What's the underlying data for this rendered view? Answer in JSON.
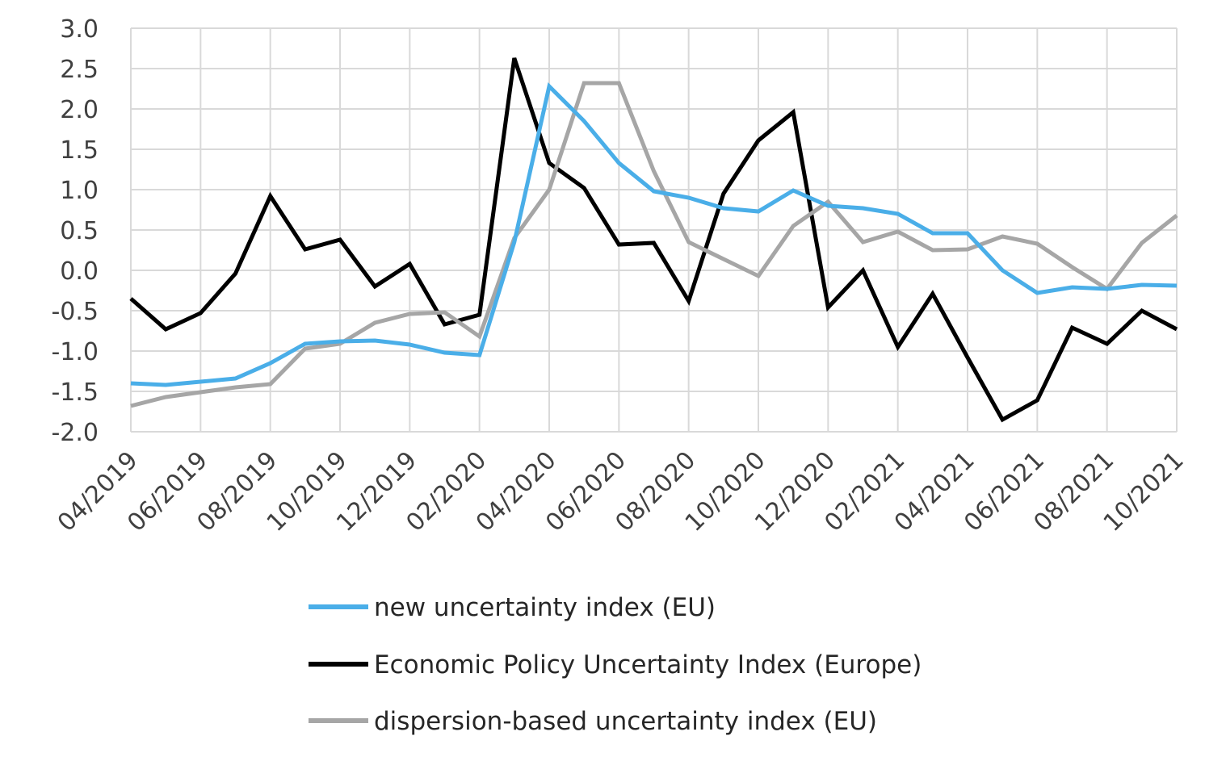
{
  "chart_data": {
    "type": "line",
    "title": "",
    "xlabel": "",
    "ylabel": "",
    "ylim": [
      -2.0,
      3.0
    ],
    "y_ticks": [
      "3.0",
      "2.5",
      "2.0",
      "1.5",
      "1.0",
      "0.5",
      "0.0",
      "-0.5",
      "-1.0",
      "-1.5",
      "-2.0"
    ],
    "x": [
      "04/2019",
      "05/2019",
      "06/2019",
      "07/2019",
      "08/2019",
      "09/2019",
      "10/2019",
      "11/2019",
      "12/2019",
      "01/2020",
      "02/2020",
      "03/2020",
      "04/2020",
      "05/2020",
      "06/2020",
      "07/2020",
      "08/2020",
      "09/2020",
      "10/2020",
      "11/2020",
      "12/2020",
      "01/2021",
      "02/2021",
      "03/2021",
      "04/2021",
      "05/2021",
      "06/2021",
      "07/2021",
      "08/2021",
      "09/2021",
      "10/2021"
    ],
    "x_tick_labels": [
      "04/2019",
      "06/2019",
      "08/2019",
      "10/2019",
      "12/2019",
      "02/2020",
      "04/2020",
      "06/2020",
      "08/2020",
      "10/2020",
      "12/2020",
      "02/2021",
      "04/2021",
      "06/2021",
      "08/2021",
      "10/2021"
    ],
    "grid": true,
    "legend_position": "bottom",
    "series": [
      {
        "name": "new uncertainty index (EU)",
        "color": "#4aaee8",
        "values": [
          -1.4,
          -1.42,
          -1.38,
          -1.34,
          -1.15,
          -0.91,
          -0.88,
          -0.87,
          -0.92,
          -1.02,
          -1.05,
          0.35,
          2.28,
          1.85,
          1.33,
          0.98,
          0.9,
          0.77,
          0.73,
          0.99,
          0.8,
          0.77,
          0.7,
          0.46,
          0.46,
          0.0,
          -0.28,
          -0.21,
          -0.23,
          -0.18,
          -0.19
        ]
      },
      {
        "name": "Economic Policy Uncertainty Index (Europe)",
        "color": "#000000",
        "values": [
          -0.35,
          -0.73,
          -0.53,
          -0.04,
          0.92,
          0.26,
          0.38,
          -0.2,
          0.08,
          -0.67,
          -0.55,
          2.63,
          1.33,
          1.02,
          0.32,
          0.34,
          -0.38,
          0.95,
          1.61,
          1.96,
          -0.46,
          0.0,
          -0.95,
          -0.29,
          -1.08,
          -1.85,
          -1.61,
          -0.71,
          -0.91,
          -0.5,
          -0.73
        ]
      },
      {
        "name": "dispersion-based uncertainty index (EU)",
        "color": "#a6a6a6",
        "values": [
          -1.68,
          -1.57,
          -1.51,
          -1.45,
          -1.41,
          -0.97,
          -0.91,
          -0.65,
          -0.54,
          -0.52,
          -0.82,
          0.4,
          1.0,
          2.32,
          2.32,
          1.23,
          0.35,
          0.14,
          -0.07,
          0.55,
          0.85,
          0.35,
          0.48,
          0.25,
          0.26,
          0.42,
          0.33,
          0.04,
          -0.23,
          0.34,
          0.68
        ]
      }
    ]
  }
}
